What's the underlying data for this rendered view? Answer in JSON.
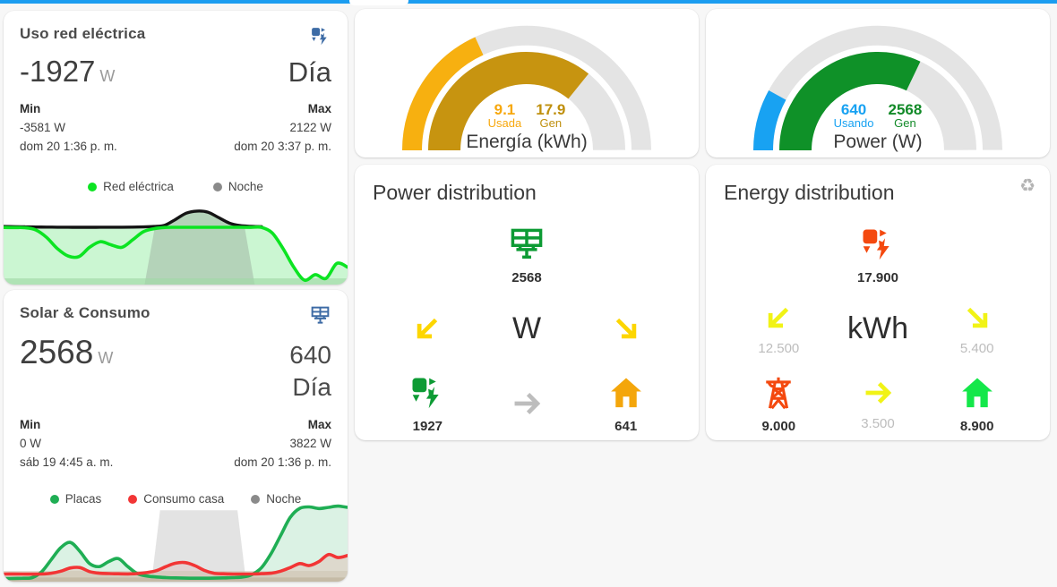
{
  "page": {
    "top_bar_color": "#1b9df0"
  },
  "cards": {
    "uso": {
      "title": "Uso red eléctrica",
      "icon": "solar-power-variant",
      "icon_color": "#3d6ba5",
      "value": "-1927",
      "unit": "W",
      "period": "Día",
      "min_label": "Min",
      "min_value": "-3581 W",
      "min_time": "dom 20 1:36 p. m.",
      "max_label": "Max",
      "max_value": "2122 W",
      "max_time": "dom 20 3:37 p. m.",
      "legend": [
        {
          "label": "Red eléctrica",
          "color": "#0ce422"
        },
        {
          "label": "Noche",
          "color": "#8a8a8a"
        }
      ]
    },
    "solar": {
      "title": "Solar & Consumo",
      "icon": "solar-panel",
      "icon_color": "#3d6ba5",
      "value": "2568",
      "unit": "W",
      "secondary": "640",
      "period": "Día",
      "min_label": "Min",
      "min_value": "0 W",
      "min_time": "sáb 19 4:45 a. m.",
      "max_label": "Max",
      "max_value": "3822 W",
      "max_time": "dom 20 1:36 p. m.",
      "legend": [
        {
          "label": "Placas",
          "color": "#1fae54"
        },
        {
          "label": "Consumo casa",
          "color": "#f23535"
        },
        {
          "label": "Noche",
          "color": "#8a8a8a"
        }
      ]
    },
    "gauge_energia": {
      "title": "Energía (kWh)",
      "left_value": "9.1",
      "left_label": "Usada",
      "left_color": "#f7a80d",
      "right_value": "17.9",
      "right_label": "Gen",
      "right_color": "#bf8f0d"
    },
    "gauge_power": {
      "title": "Power (W)",
      "left_value": "640",
      "left_label": "Usando",
      "left_color": "#18a2f2",
      "right_value": "2568",
      "right_label": "Gen",
      "right_color": "#128a28"
    },
    "power_dist": {
      "title": "Power distribution",
      "unit": "W",
      "solar_value": "2568",
      "grid_value": "1927",
      "home_value": "641",
      "solar_color": "#0d9b34",
      "grid_color": "#0d9b34",
      "home_color": "#f4a60b",
      "arrow_color": "#fdd600",
      "center_arrow_color": "#bdbdbd"
    },
    "energy_dist": {
      "title": "Energy distribution",
      "unit": "kWh",
      "solar_value": "17.900",
      "grid_value": "9.000",
      "home_value": "8.900",
      "left_flow": "12.500",
      "right_flow": "5.400",
      "center_flow": "3.500",
      "solar_color": "#f4490f",
      "grid_color": "#f4490f",
      "home_color": "#14e74a",
      "arrow_color": "#f1f316",
      "center_arrow_color": "#f1f316",
      "refresh_glyph": "♻"
    }
  },
  "chart_data": [
    {
      "id": "gauge-energia",
      "type": "gauge",
      "title": "Energía (kWh)",
      "max": 25,
      "outer": {
        "name": "Usada",
        "value": 9.1,
        "color": "#f7b010"
      },
      "inner": {
        "name": "Gen",
        "value": 17.9,
        "color": "#c79410"
      },
      "track_color": "#e4e4e4"
    },
    {
      "id": "gauge-power",
      "type": "gauge",
      "title": "Power (W)",
      "max": 4000,
      "outer": {
        "name": "Usando",
        "value": 640,
        "color": "#18a2f2"
      },
      "inner": {
        "name": "Gen",
        "value": 2568,
        "color": "#0f9128"
      },
      "track_color": "#e4e4e4"
    },
    {
      "id": "chart-uso",
      "type": "area",
      "h": 86,
      "ylim": [
        -3800,
        2400
      ],
      "title": "Uso red eléctrica (W) - Día",
      "area": {
        "color": "#5ee374",
        "opacity": 0.32,
        "values": [
          880,
          868,
          852,
          838,
          828,
          822,
          818,
          816,
          816,
          818,
          820,
          824,
          830,
          845,
          880,
          980,
          1450,
          1950,
          2120,
          2030,
          1600,
          1150,
          950,
          890,
          865,
          350,
          -900,
          -2400,
          -3450,
          -3000,
          -3300,
          -2100,
          -2400
        ]
      },
      "night_band": {
        "x_start_pct": 44,
        "x_end_pct": 70,
        "slant_pct": 3,
        "color": "#808080",
        "opacity": 0.3,
        "top": "curve"
      },
      "bottom_bands": [
        {
          "height_pct": 8,
          "color": "#9fd8a6",
          "opacity": 0.65
        }
      ],
      "series": [
        {
          "name": "Noche",
          "color": "#141414",
          "width": 3.4,
          "x_end_pct": 75,
          "values": [
            880,
            868,
            852,
            838,
            828,
            822,
            818,
            816,
            816,
            818,
            820,
            824,
            830,
            845,
            880,
            980,
            1450,
            1950,
            2120,
            2030,
            1600,
            1150,
            950,
            890,
            865
          ]
        },
        {
          "name": "Red eléctrica",
          "color": "#0ce422",
          "width": 3.6,
          "values": [
            800,
            790,
            780,
            600,
            0,
            -900,
            -1500,
            -1550,
            -800,
            -350,
            -600,
            -800,
            -200,
            450,
            700,
            800,
            815,
            815,
            815,
            815,
            815,
            815,
            815,
            810,
            805,
            350,
            -900,
            -2400,
            -3450,
            -3000,
            -3300,
            -2100,
            -2400
          ]
        }
      ]
    },
    {
      "id": "chart-solar",
      "type": "area",
      "h": 92,
      "ylim": [
        0,
        4100
      ],
      "title": "Solar & Consumo (W) - Día",
      "night_band": {
        "x_start_pct": 45.5,
        "x_end_pct": 68,
        "slant_pct": 2.5,
        "color": "#a8a8a8",
        "opacity": 0.32,
        "top": 3550
      },
      "bottom_bands": [
        {
          "height_pct": 13,
          "color": "#cfc5b2",
          "opacity": 0.6
        },
        {
          "height_pct": 5,
          "color": "#c2b7a2",
          "opacity": 0.85
        }
      ],
      "series": [
        {
          "name": "Placas",
          "color": "#1fae54",
          "width": 3.6,
          "fill_opacity": 0.16,
          "values": [
            150,
            160,
            170,
            200,
            500,
            1100,
            1700,
            1950,
            1500,
            900,
            750,
            1000,
            1150,
            750,
            400,
            280,
            230,
            200,
            185,
            175,
            170,
            170,
            175,
            185,
            200,
            230,
            350,
            700,
            1400,
            2300,
            3200,
            3650,
            3720,
            3640,
            3700,
            3760,
            3700
          ]
        },
        {
          "name": "Consumo casa",
          "color": "#f23535",
          "width": 3.6,
          "fill_opacity": 0.13,
          "values": [
            380,
            385,
            380,
            375,
            380,
            420,
            520,
            680,
            700,
            500,
            420,
            400,
            390,
            385,
            400,
            450,
            550,
            750,
            920,
            950,
            800,
            560,
            420,
            390,
            380,
            378,
            380,
            395,
            420,
            520,
            700,
            900,
            800,
            1000,
            1350,
            1200,
            1300
          ]
        }
      ]
    }
  ]
}
